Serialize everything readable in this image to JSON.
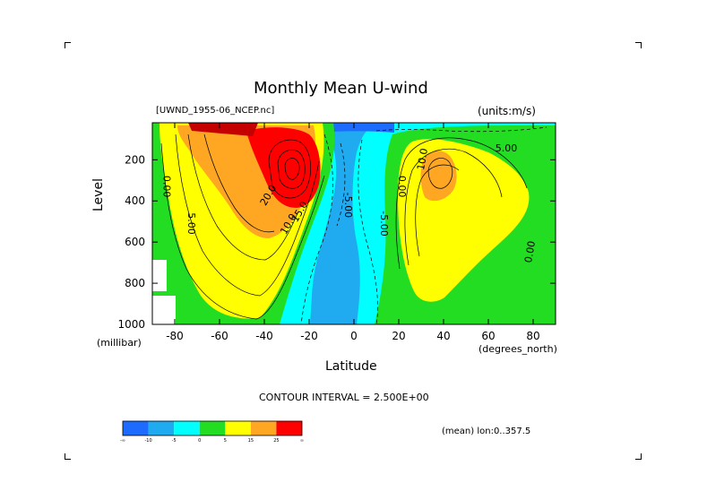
{
  "title": "Monthly Mean U-wind",
  "dataset_label": "[UWND_1955-06_NCEP.nc]",
  "units_label": "(units:m/s)",
  "contour_interval": "CONTOUR INTERVAL = 2.500E+00",
  "averaging_label": "(mean) lon:0..357.5",
  "chart_data": {
    "type": "heatmap",
    "subtype": "filled-contour",
    "title": "Monthly Mean U-wind",
    "xlabel": "Latitude",
    "xunit": "(degrees_north)",
    "ylabel": "Level",
    "yunit": "(millibar)",
    "xlim": [
      -90,
      90
    ],
    "ylim": [
      1000,
      20
    ],
    "y_inverted": true,
    "x_ticks": [
      -80,
      -60,
      -40,
      -20,
      0,
      20,
      40,
      60,
      80
    ],
    "y_ticks": [
      200,
      400,
      600,
      800,
      1000
    ],
    "contour_interval": 2.5,
    "contour_labels": [
      "0.00",
      "5.00",
      "20.0",
      "10.0",
      "15.0",
      "-5.00",
      "-5.00",
      "0.00",
      "10.0",
      "5.00",
      "0.00"
    ],
    "colorbar": {
      "tick_labels": [
        "-∞",
        "-10",
        "-5",
        "0",
        "5",
        "15",
        "25",
        "∞"
      ],
      "colors": [
        "#1e6bff",
        "#20aaf0",
        "#00ffff",
        "#22dd22",
        "#ffff00",
        "#ffa623",
        "#ff0000"
      ]
    },
    "features": [
      {
        "name": "southern-hemisphere-jet",
        "lat": -28,
        "level": 200,
        "peak": 30
      },
      {
        "name": "northern-hemisphere-jet",
        "lat": 40,
        "level": 200,
        "peak": 17
      },
      {
        "name": "tropical-easterlies",
        "lat": -5,
        "level": 100,
        "min": -10
      }
    ]
  }
}
